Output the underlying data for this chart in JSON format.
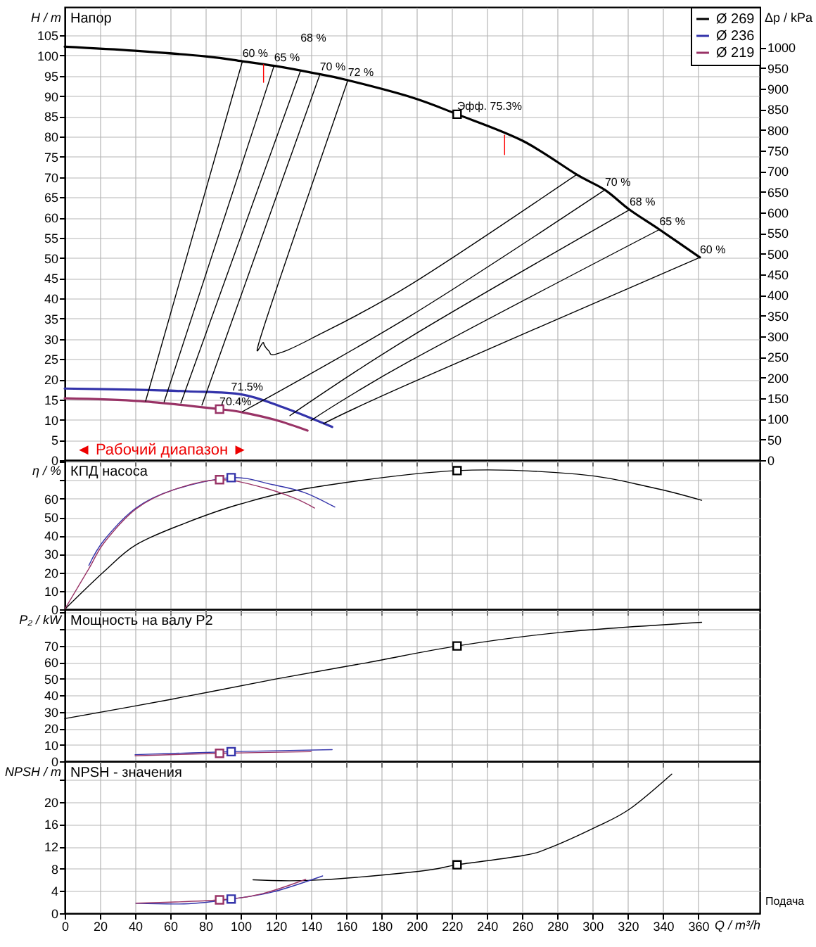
{
  "chart_data": [
    {
      "type": "line",
      "ylabel": "H / m",
      "y2label": "Δp / kPa",
      "legend": "top right",
      "grid": true,
      "tick_labels": "y",
      "xlim": [
        0,
        395
      ],
      "xticks": [
        0,
        20,
        40,
        60,
        80,
        100,
        120,
        140,
        160,
        180,
        200,
        220,
        240,
        260,
        280,
        300,
        320,
        340,
        360
      ],
      "ylim": [
        0,
        112
      ],
      "yticks": [
        0,
        5,
        10,
        15,
        20,
        25,
        30,
        35,
        40,
        45,
        50,
        55,
        60,
        65,
        70,
        75,
        80,
        85,
        90,
        95,
        100,
        105
      ],
      "y2lim": [
        0,
        1098
      ],
      "y2ticks": [
        0,
        50,
        100,
        150,
        200,
        250,
        300,
        350,
        400,
        450,
        500,
        550,
        600,
        650,
        700,
        750,
        800,
        850,
        900,
        950,
        1000
      ],
      "annotations": [
        "Напор",
        {
          "text": "60 %",
          "x": 101,
          "y": 98.6
        },
        {
          "text": "65 %",
          "x": 119,
          "y": 97.5
        },
        {
          "text": "68 %",
          "x": 134,
          "y": 96.2
        },
        {
          "text": "70 %",
          "x": 145,
          "y": 95.3
        },
        {
          "text": "72 %",
          "x": 161,
          "y": 94
        },
        {
          "text": "Эфф.  75.3%",
          "x": 223,
          "y": 85.5
        },
        {
          "text": "70 %",
          "x": 307,
          "y": 66.8
        },
        {
          "text": "68 %",
          "x": 321,
          "y": 61.9
        },
        {
          "text": "65 %",
          "x": 338,
          "y": 57
        },
        {
          "text": "60 %",
          "x": 361,
          "y": 50.1
        },
        {
          "text": "71.5%",
          "x": 94.6,
          "y": 16.2
        },
        {
          "text": "70.4%",
          "x": 88,
          "y": 12.6
        },
        "◄ Рабочий диапазон ►"
      ],
      "series": [
        {
          "name": "Ø 269",
          "color": "#000000",
          "x": [
            0,
            40,
            80,
            101,
            120,
            140,
            160,
            197,
            223,
            260,
            291,
            307,
            321,
            338,
            361
          ],
          "values": [
            102.2,
            101.2,
            99.8,
            98.6,
            97.4,
            95.8,
            94,
            89.7,
            85.5,
            79,
            70.6,
            66.8,
            61.9,
            57,
            50.1
          ]
        },
        {
          "name": "Ø 236",
          "color": "#3333aa",
          "x": [
            0,
            40,
            70,
            101,
            125,
            152
          ],
          "values": [
            17.7,
            17.4,
            17,
            16.2,
            12.9,
            8.2
          ]
        },
        {
          "name": "Ø 219",
          "color": "#993366",
          "x": [
            0,
            43,
            88,
            101,
            120,
            138
          ],
          "values": [
            15.3,
            14.6,
            12.6,
            11.8,
            9.9,
            7.3
          ]
        },
        {
          "color": "#000000",
          "x": [
            101,
            46
          ],
          "values": [
            98.6,
            14.6
          ]
        },
        {
          "color": "#000000",
          "x": [
            119,
            56.5
          ],
          "values": [
            97.5,
            14.4
          ]
        },
        {
          "color": "#000000",
          "x": [
            134,
            66
          ],
          "values": [
            96.2,
            14.1
          ]
        },
        {
          "color": "#000000",
          "x": [
            145,
            78
          ],
          "values": [
            95.3,
            13.6
          ]
        },
        {
          "color": "#000000",
          "x": [
            161,
            113,
            113,
            116,
            120,
            140,
            197,
            291
          ],
          "values": [
            94,
            32.7,
            29,
            27,
            26.2,
            30,
            43.5,
            70.6
          ]
        },
        {
          "color": "#000000",
          "x": [
            307,
            197,
            101
          ],
          "values": [
            66.8,
            35.8,
            12
          ]
        },
        {
          "color": "#000000",
          "x": [
            321,
            197,
            128
          ],
          "values": [
            61.9,
            30.6,
            11
          ]
        },
        {
          "color": "#000000",
          "x": [
            338,
            197,
            140
          ],
          "values": [
            57,
            24.7,
            9.8
          ]
        },
        {
          "color": "#000000",
          "x": [
            361,
            197,
            147
          ],
          "values": [
            50.1,
            19.1,
            9
          ]
        },
        {
          "type": "scatter",
          "marker": "square",
          "color": "#000000",
          "x": [
            223
          ],
          "values": [
            85.5
          ]
        },
        {
          "type": "scatter",
          "marker": "square",
          "color": "#993366",
          "x": [
            88
          ],
          "values": [
            12.6
          ]
        },
        {
          "color": "#ff0000",
          "x": [
            113,
            113
          ],
          "values": [
            97.8,
            93.4
          ]
        },
        {
          "color": "#ff0000",
          "x": [
            250,
            250
          ],
          "values": [
            80.3,
            75.5
          ]
        }
      ]
    },
    {
      "type": "line",
      "ylabel": "η / %",
      "grid": true,
      "tick_labels": "y",
      "xlim": [
        0,
        395
      ],
      "xticks": [
        0,
        20,
        40,
        60,
        80,
        100,
        120,
        140,
        160,
        180,
        200,
        220,
        240,
        260,
        280,
        300,
        320,
        340,
        360
      ],
      "ylim": [
        0,
        81
      ],
      "yticks": [
        0,
        10,
        20,
        30,
        40,
        50,
        60,
        {
          "value": 70,
          "label": null
        },
        {
          "value": 80,
          "label": null
        }
      ],
      "annotations": [
        "КПД насоса"
      ],
      "series": [
        {
          "color": "#000000",
          "x": [
            0,
            22.6,
            40.5,
            67.4,
            100,
            142,
            223,
            291,
            333,
            362
          ],
          "values": [
            0,
            20.7,
            35,
            46.4,
            57.2,
            66.3,
            75.3,
            73.4,
            66.3,
            59.2
          ]
        },
        {
          "color": "#3333aa",
          "x": [
            13.7,
            22.6,
            40.5,
            61.6,
            94.6,
            118,
            136,
            153.5
          ],
          "values": [
            23.8,
            37.8,
            55,
            64.8,
            71.5,
            67.7,
            63.5,
            55.5
          ]
        },
        {
          "color": "#993366",
          "x": [
            0,
            13.7,
            22.6,
            40.5,
            61.6,
            88,
            112,
            130,
            142
          ],
          "values": [
            0,
            22,
            36.4,
            54.5,
            64.8,
            70.4,
            66.3,
            60.6,
            55
          ]
        },
        {
          "type": "scatter",
          "marker": "square",
          "color": "#000000",
          "x": [
            223
          ],
          "values": [
            75.3
          ]
        },
        {
          "type": "scatter",
          "marker": "square",
          "color": "#3333aa",
          "x": [
            94.6
          ],
          "values": [
            71.5
          ]
        },
        {
          "type": "scatter",
          "marker": "square",
          "color": "#993366",
          "x": [
            88
          ],
          "values": [
            70.4
          ]
        }
      ]
    },
    {
      "type": "line",
      "ylabel": "P₂ / kW",
      "grid": true,
      "tick_labels": "y",
      "xlim": [
        0,
        395
      ],
      "xticks": [
        0,
        20,
        40,
        60,
        80,
        100,
        120,
        140,
        160,
        180,
        200,
        220,
        240,
        260,
        280,
        300,
        320,
        340,
        360
      ],
      "ylim": [
        0,
        92
      ],
      "yticks": [
        0,
        10,
        20,
        30,
        40,
        50,
        60,
        70,
        {
          "value": 80,
          "label": null
        },
        {
          "value": 90,
          "label": null
        }
      ],
      "annotations": [
        "Мощность на валу P2"
      ],
      "series": [
        {
          "color": "#000000",
          "x": [
            0,
            60,
            121,
            172,
            223,
            282,
            362
          ],
          "values": [
            25.8,
            37.4,
            50,
            59.7,
            69.8,
            78,
            84.1
          ]
        },
        {
          "color": "#3333aa",
          "x": [
            40,
            94.6,
            152
          ],
          "values": [
            4,
            5.8,
            7
          ]
        },
        {
          "color": "#993366",
          "x": [
            40,
            88,
            140
          ],
          "values": [
            3.3,
            4.8,
            5.8
          ]
        },
        {
          "type": "scatter",
          "marker": "square",
          "color": "#000000",
          "x": [
            223
          ],
          "values": [
            69.8
          ]
        },
        {
          "type": "scatter",
          "marker": "square",
          "color": "#3333aa",
          "x": [
            94.6
          ],
          "values": [
            5.8
          ]
        },
        {
          "type": "scatter",
          "marker": "square",
          "color": "#993366",
          "x": [
            88
          ],
          "values": [
            4.8
          ]
        }
      ]
    },
    {
      "type": "line",
      "ylabel": "NPSH / m",
      "xlabel": "Q / m³/h",
      "grid": true,
      "xlim": [
        0,
        395
      ],
      "xticks": [
        0,
        20,
        40,
        60,
        80,
        100,
        120,
        140,
        160,
        180,
        200,
        220,
        240,
        260,
        280,
        300,
        320,
        340,
        360
      ],
      "ylim": [
        0,
        27.3
      ],
      "yticks": [
        0,
        4,
        8,
        12,
        16,
        20,
        {
          "value": 24,
          "label": null
        }
      ],
      "annotations": [
        "NPSH - значения",
        "Подача"
      ],
      "series": [
        {
          "color": "#000000",
          "x": [
            107,
            143,
            202,
            223,
            261,
            276,
            302,
            321,
            345
          ],
          "values": [
            6,
            5.95,
            7.55,
            8.7,
            10.4,
            11.8,
            15.5,
            18.7,
            25
          ]
        },
        {
          "color": "#3333aa",
          "x": [
            40.5,
            70.4,
            94.6,
            118,
            146.6
          ],
          "values": [
            1.8,
            1.7,
            2.55,
            3.8,
            6.7
          ]
        },
        {
          "color": "#993366",
          "x": [
            40.5,
            88,
            112,
            137
          ],
          "values": [
            1.8,
            2.4,
            3.5,
            6.1
          ]
        },
        {
          "type": "scatter",
          "marker": "square",
          "color": "#000000",
          "x": [
            223
          ],
          "values": [
            8.7
          ]
        },
        {
          "type": "scatter",
          "marker": "square",
          "color": "#3333aa",
          "x": [
            94.6
          ],
          "values": [
            2.55
          ]
        },
        {
          "type": "scatter",
          "marker": "square",
          "color": "#993366",
          "x": [
            88
          ],
          "values": [
            2.4
          ]
        }
      ]
    }
  ]
}
